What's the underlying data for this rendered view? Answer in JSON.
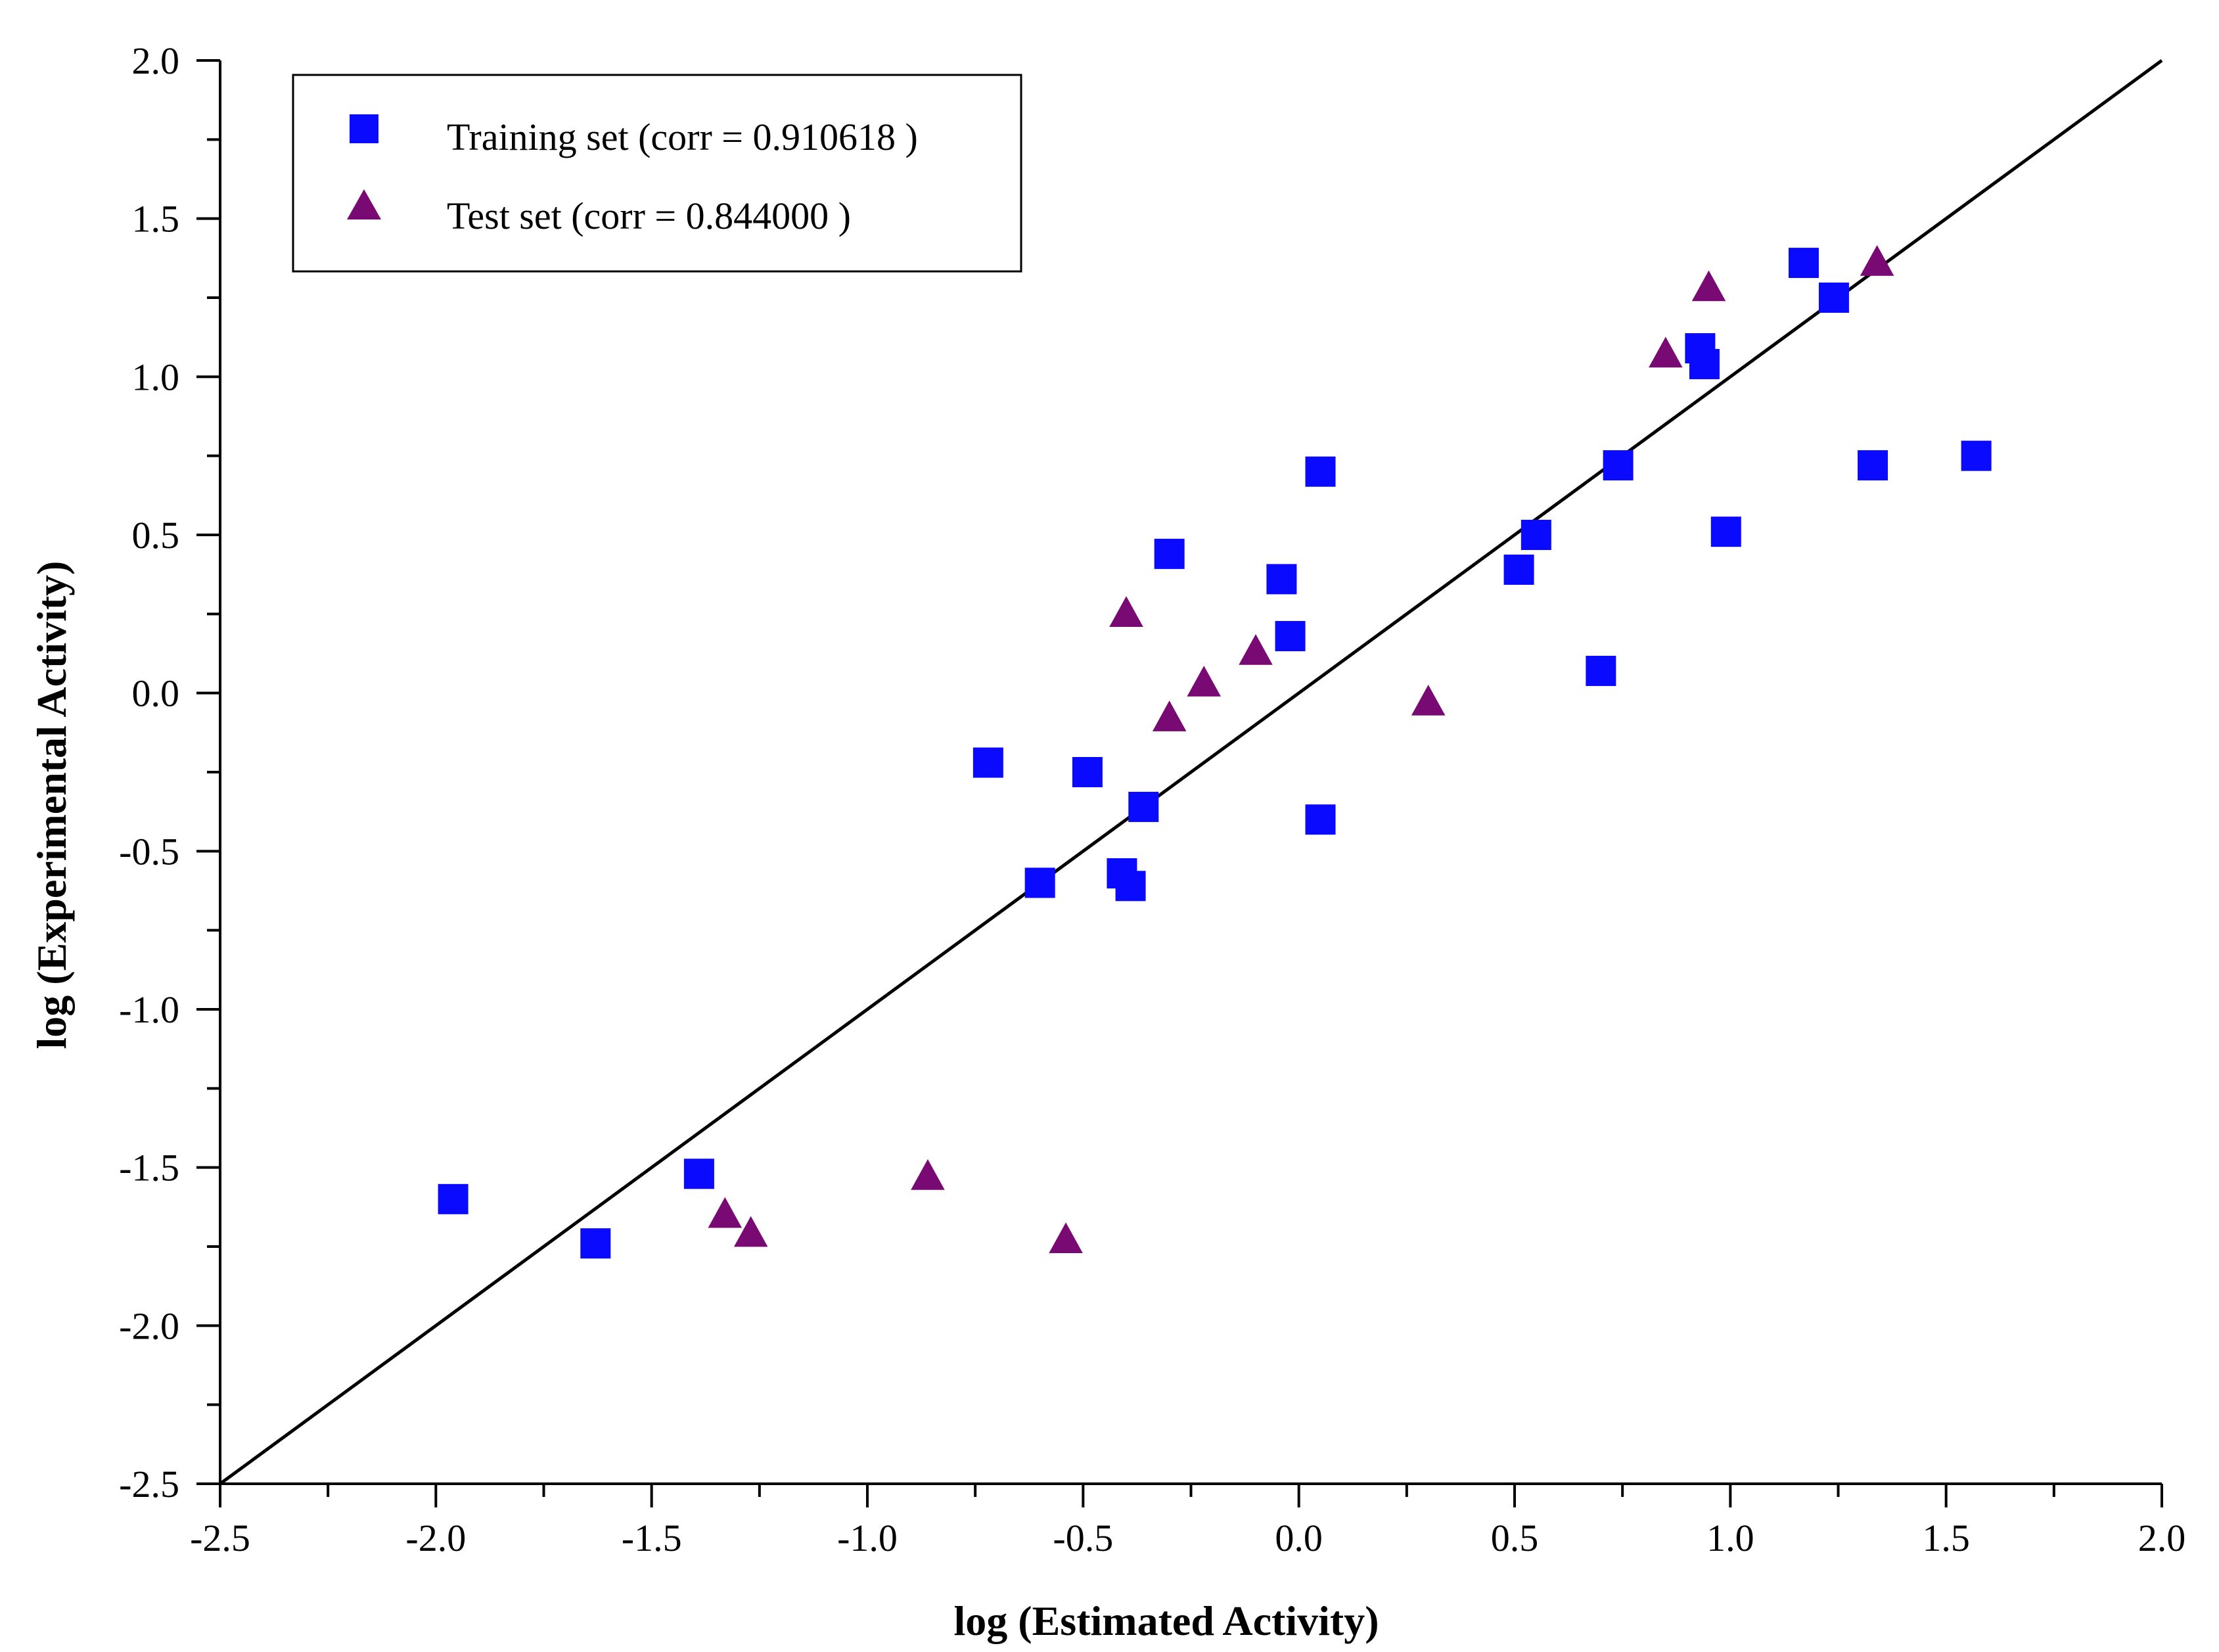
{
  "chart_data": {
    "type": "scatter",
    "title": "",
    "xlabel": "log (Estimated Activity)",
    "ylabel": "log (Experimental Activity)",
    "xlim": [
      -2.5,
      2.0
    ],
    "ylim": [
      -2.5,
      2.0
    ],
    "x_ticks": [
      -2.5,
      -2.0,
      -1.5,
      -1.0,
      -0.5,
      0.0,
      0.5,
      1.0,
      1.5,
      2.0
    ],
    "y_ticks": [
      -2.5,
      -2.0,
      -1.5,
      -1.0,
      -0.5,
      0.0,
      0.5,
      1.0,
      1.5,
      2.0
    ],
    "x_tick_labels": [
      "-2.5",
      "-2.0",
      "-1.5",
      "-1.0",
      "-0.5",
      "0.0",
      "0.5",
      "1.0",
      "1.5",
      "2.0"
    ],
    "y_tick_labels": [
      "-2.5",
      "-2.0",
      "-1.5",
      "-1.0",
      "-0.5",
      "0.0",
      "0.5",
      "1.0",
      "1.5",
      "2.0"
    ],
    "minor_ticks_per_interval": 2,
    "grid": false,
    "legend_position": "top-left",
    "reference_line": {
      "from": [
        -2.5,
        -2.5
      ],
      "to": [
        2.0,
        2.0
      ],
      "color": "#000000"
    },
    "series": [
      {
        "name": "Training set (corr = 0.910618 )",
        "marker": "square",
        "color": "#0a0aff",
        "points": [
          [
            -1.96,
            -1.6
          ],
          [
            -1.63,
            -1.74
          ],
          [
            -1.39,
            -1.52
          ],
          [
            -0.72,
            -0.22
          ],
          [
            -0.6,
            -0.6
          ],
          [
            -0.49,
            -0.25
          ],
          [
            -0.41,
            -0.57
          ],
          [
            -0.39,
            -0.61
          ],
          [
            -0.36,
            -0.36
          ],
          [
            -0.3,
            0.44
          ],
          [
            -0.04,
            0.36
          ],
          [
            -0.02,
            0.18
          ],
          [
            0.05,
            0.7
          ],
          [
            0.05,
            -0.4
          ],
          [
            0.51,
            0.39
          ],
          [
            0.55,
            0.5
          ],
          [
            0.7,
            0.07
          ],
          [
            0.74,
            0.72
          ],
          [
            0.93,
            1.09
          ],
          [
            0.94,
            1.04
          ],
          [
            0.99,
            0.51
          ],
          [
            1.17,
            1.36
          ],
          [
            1.24,
            1.25
          ],
          [
            1.33,
            0.72
          ],
          [
            1.57,
            0.75
          ]
        ]
      },
      {
        "name": "Test set (corr = 0.844000 )",
        "marker": "triangle",
        "color": "#7a0a73",
        "points": [
          [
            -1.33,
            -1.65
          ],
          [
            -1.27,
            -1.71
          ],
          [
            -0.86,
            -1.53
          ],
          [
            -0.54,
            -1.73
          ],
          [
            -0.4,
            0.25
          ],
          [
            -0.3,
            -0.08
          ],
          [
            -0.22,
            0.03
          ],
          [
            -0.1,
            0.13
          ],
          [
            0.3,
            -0.03
          ],
          [
            0.85,
            1.07
          ],
          [
            0.95,
            1.28
          ],
          [
            1.34,
            1.36
          ]
        ]
      }
    ]
  }
}
